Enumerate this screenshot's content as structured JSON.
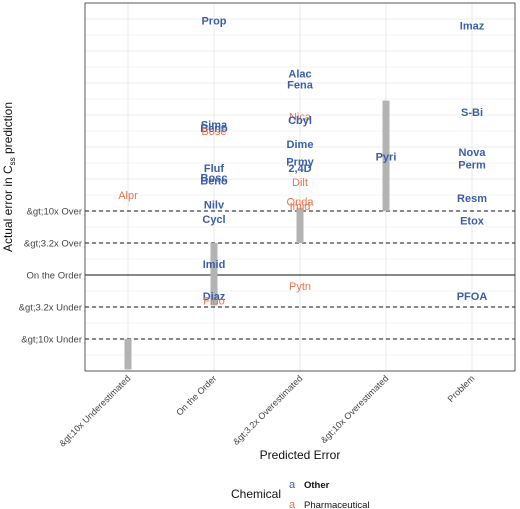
{
  "chart_data": {
    "type": "scatter",
    "xlabel": "Predicted Error",
    "ylabel_main": "Actual error in C",
    "ylabel_sub": "ss",
    "ylabel_tail": " prediction",
    "categories": [
      "&gt;10x Underestimated",
      "On the Order",
      "&gt;3.2x Overestimated",
      "&gt;10x Overestimated",
      "Problem"
    ],
    "ylim": [
      -3.0,
      8.5
    ],
    "yticks": [
      {
        "value": 2,
        "label": "&gt;10x Over",
        "dashed": true
      },
      {
        "value": 1,
        "label": "&gt;3.2x Over",
        "dashed": true
      },
      {
        "value": 0,
        "label": "On the Order",
        "solid": true
      },
      {
        "value": -1,
        "label": "&gt;3.2x Under",
        "dashed": true
      },
      {
        "value": -2,
        "label": "&gt;10x Under",
        "dashed": true
      }
    ],
    "grid": true,
    "colors": {
      "Other": "#3b5ea8",
      "Pharmaceutical": "#e8734f",
      "range_bar": "#b3b3b3"
    },
    "range_bars": [
      {
        "category": 0,
        "from": -2.0,
        "to": -2.95
      },
      {
        "category": 1,
        "from": 1.0,
        "to": -0.95
      },
      {
        "category": 2,
        "from": 2.1,
        "to": 1.0
      },
      {
        "category": 3,
        "from": 5.45,
        "to": 2.0
      }
    ],
    "points": [
      {
        "label": "Prop",
        "category": 1,
        "y": 7.95,
        "group": "Other"
      },
      {
        "label": "Sima",
        "category": 1,
        "y": 4.7,
        "group": "Other"
      },
      {
        "label": "Beno",
        "category": 1,
        "y": 4.6,
        "group": "Other"
      },
      {
        "label": "Bose",
        "category": 1,
        "y": 4.5,
        "group": "Pharmaceutical"
      },
      {
        "label": "Fluf",
        "category": 1,
        "y": 3.35,
        "group": "Other"
      },
      {
        "label": "Bosc",
        "category": 1,
        "y": 3.05,
        "group": "Other"
      },
      {
        "label": "Beno",
        "category": 1,
        "y": 2.95,
        "group": "Other"
      },
      {
        "label": "Nilv",
        "category": 1,
        "y": 2.2,
        "group": "Other"
      },
      {
        "label": "Cycl",
        "category": 1,
        "y": 1.75,
        "group": "Other"
      },
      {
        "label": "Imid",
        "category": 1,
        "y": 0.35,
        "group": "Other"
      },
      {
        "label": "Diaz",
        "category": 1,
        "y": -0.65,
        "group": "Other"
      },
      {
        "label": "Fluo",
        "category": 1,
        "y": -0.8,
        "group": "Pharmaceutical"
      },
      {
        "label": "Alpr",
        "category": 0,
        "y": 2.5,
        "group": "Pharmaceutical"
      },
      {
        "label": "Alac",
        "category": 2,
        "y": 6.3,
        "group": "Other"
      },
      {
        "label": "Fena",
        "category": 2,
        "y": 5.95,
        "group": "Other"
      },
      {
        "label": "Nica",
        "category": 2,
        "y": 4.95,
        "group": "Pharmaceutical"
      },
      {
        "label": "Cbyl",
        "category": 2,
        "y": 4.85,
        "group": "Other"
      },
      {
        "label": "Dime",
        "category": 2,
        "y": 4.1,
        "group": "Other"
      },
      {
        "label": "Prmy",
        "category": 2,
        "y": 3.55,
        "group": "Other"
      },
      {
        "label": "2,4D",
        "category": 2,
        "y": 3.35,
        "group": "Other"
      },
      {
        "label": "Dilt",
        "category": 2,
        "y": 2.9,
        "group": "Pharmaceutical"
      },
      {
        "label": "Onda",
        "category": 2,
        "y": 2.3,
        "group": "Pharmaceutical"
      },
      {
        "label": "Imid",
        "category": 2,
        "y": 2.15,
        "group": "Pharmaceutical"
      },
      {
        "label": "Pytn",
        "category": 2,
        "y": -0.35,
        "group": "Pharmaceutical"
      },
      {
        "label": "Pyri",
        "category": 3,
        "y": 3.7,
        "group": "Other"
      },
      {
        "label": "Imaz",
        "category": 4,
        "y": 7.8,
        "group": "Other"
      },
      {
        "label": "S-Bi",
        "category": 4,
        "y": 5.1,
        "group": "Other"
      },
      {
        "label": "Nova",
        "category": 4,
        "y": 3.85,
        "group": "Other"
      },
      {
        "label": "Perm",
        "category": 4,
        "y": 3.45,
        "group": "Other"
      },
      {
        "label": "Resm",
        "category": 4,
        "y": 2.4,
        "group": "Other"
      },
      {
        "label": "Etox",
        "category": 4,
        "y": 1.7,
        "group": "Other"
      },
      {
        "label": "PFOA",
        "category": 4,
        "y": -0.65,
        "group": "Other"
      }
    ],
    "legend": {
      "title": "Chemical",
      "glyph": "a",
      "entries": [
        {
          "name": "Other",
          "group": "Other",
          "bold": true
        },
        {
          "name": "Pharmaceutical",
          "group": "Pharmaceutical",
          "bold": false
        }
      ]
    }
  }
}
